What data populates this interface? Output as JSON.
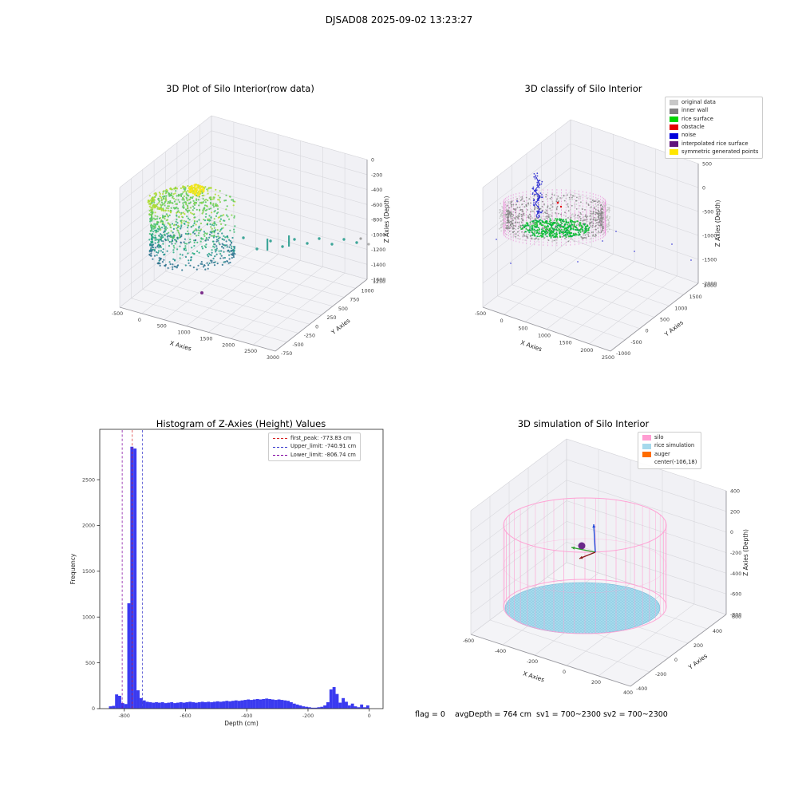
{
  "figure": {
    "title": "DJSAD08 2025-09-02 13:23:27"
  },
  "chart_data": [
    {
      "id": "raw",
      "type": "scatter",
      "projection": "3d",
      "title": "3D Plot of Silo Interior(row data)",
      "xlabel": "X Axies",
      "ylabel": "Y Axies",
      "zlabel": "Z Axies (Depth)",
      "xticks": [
        -500,
        0,
        500,
        1000,
        1500,
        2000,
        2500,
        3000
      ],
      "yticks": [
        -750,
        -500,
        -250,
        0,
        250,
        500,
        750,
        1000,
        1250
      ],
      "zticks": [
        0,
        -200,
        -400,
        -600,
        -800,
        -1000,
        -1200,
        -1400,
        -1600
      ],
      "content_summary": "cylindrical silo-wall point cloud colored by depth (viridis teal-to-yellow, yellow bump on top rim), sparse teal outlier points trailing toward large X, one purple outlier point low-left"
    },
    {
      "id": "classify",
      "type": "scatter",
      "projection": "3d",
      "title": "3D classify of Silo Interior",
      "xlabel": "X Axies",
      "ylabel": "Y Axies",
      "zlabel": "Z Axies (Depth)",
      "xticks": [
        -500,
        0,
        500,
        1000,
        1500,
        2000,
        2500
      ],
      "yticks": [
        -1000,
        -500,
        0,
        500,
        1000,
        1500,
        2000
      ],
      "zticks": [
        500,
        0,
        -500,
        -1000,
        -1500,
        -2000
      ],
      "legend": [
        {
          "label": "original data",
          "color": "#c8c8c8"
        },
        {
          "label": "inner wall",
          "color": "#7f7f7f"
        },
        {
          "label": "rice surface",
          "color": "#00d400"
        },
        {
          "label": "obstacle",
          "color": "#e60000"
        },
        {
          "label": "noise",
          "color": "#0000dc"
        },
        {
          "label": "interpolated rice surface",
          "color": "#62157d"
        },
        {
          "label": "symmetric generated points",
          "color": "#ffe600"
        }
      ],
      "content_summary": "gray ring of inner-wall points fringed by pink dashed interpolated columns, green rice-surface disc inside, blue noise streak above center, few red obstacle points, sparse blue noise dots on floor"
    },
    {
      "id": "hist",
      "type": "histogram",
      "title": "Histogram of Z-Axies (Height) Values",
      "xlabel": "Depth (cm)",
      "ylabel": "Frequency",
      "xticks": [
        -800,
        -600,
        -400,
        -200,
        0
      ],
      "yticks": [
        0,
        500,
        1000,
        1500,
        2000,
        2500
      ],
      "xlim": [
        -880,
        45
      ],
      "ylim": [
        0,
        2980
      ],
      "bar_color": "#3a3af0",
      "bins_start": -850,
      "bin_width": 10,
      "heights": [
        25,
        30,
        155,
        140,
        60,
        50,
        1150,
        2860,
        2840,
        200,
        115,
        90,
        75,
        70,
        65,
        70,
        65,
        70,
        60,
        65,
        70,
        60,
        65,
        70,
        65,
        70,
        75,
        70,
        65,
        70,
        75,
        70,
        75,
        70,
        75,
        80,
        75,
        80,
        85,
        80,
        85,
        90,
        85,
        90,
        95,
        100,
        95,
        100,
        105,
        100,
        105,
        110,
        105,
        100,
        95,
        100,
        95,
        90,
        85,
        70,
        55,
        45,
        35,
        25,
        20,
        15,
        10,
        10,
        15,
        20,
        35,
        70,
        210,
        235,
        160,
        65,
        115,
        75,
        35,
        55,
        25,
        15,
        45,
        15,
        35
      ],
      "vlines": [
        {
          "label": "first_peak: -773.83 cm",
          "x": -773.83,
          "color": "#d62728"
        },
        {
          "label": "Upper_limit: -740.91 cm",
          "x": -740.91,
          "color": "#3333cc"
        },
        {
          "label": "Lower_limit: -806.74 cm",
          "x": -806.74,
          "color": "#7f00a0"
        }
      ]
    },
    {
      "id": "sim",
      "type": "scatter",
      "projection": "3d",
      "title": "3D simulation of Silo Interior",
      "xlabel": "X Axies",
      "ylabel": "Y Axies",
      "zlabel": "Z Axies (Depth)",
      "xticks": [
        -600,
        -400,
        -200,
        0,
        200,
        400
      ],
      "yticks": [
        -400,
        -200,
        0,
        200,
        400,
        600
      ],
      "zticks": [
        400,
        200,
        0,
        -200,
        -400,
        -600,
        -800
      ],
      "legend": [
        {
          "label": "silo",
          "color": "#ff9dd2"
        },
        {
          "label": "rice simulation",
          "color": "#a6d9ec"
        },
        {
          "label": "auger",
          "color": "#ff6d00"
        },
        {
          "label": "center(-106,18)",
          "color": null
        }
      ],
      "footer": "flag = 0    avgDepth = 764 cm  sv1 = 700~2300 sv2 = 700~2300",
      "content_summary": "pink wireframe silo cylinder, flat light-blue hatched rice-simulation disc at its base, dark purple center marker at (-106,18), small RGB orientation triad near silo top center"
    }
  ]
}
